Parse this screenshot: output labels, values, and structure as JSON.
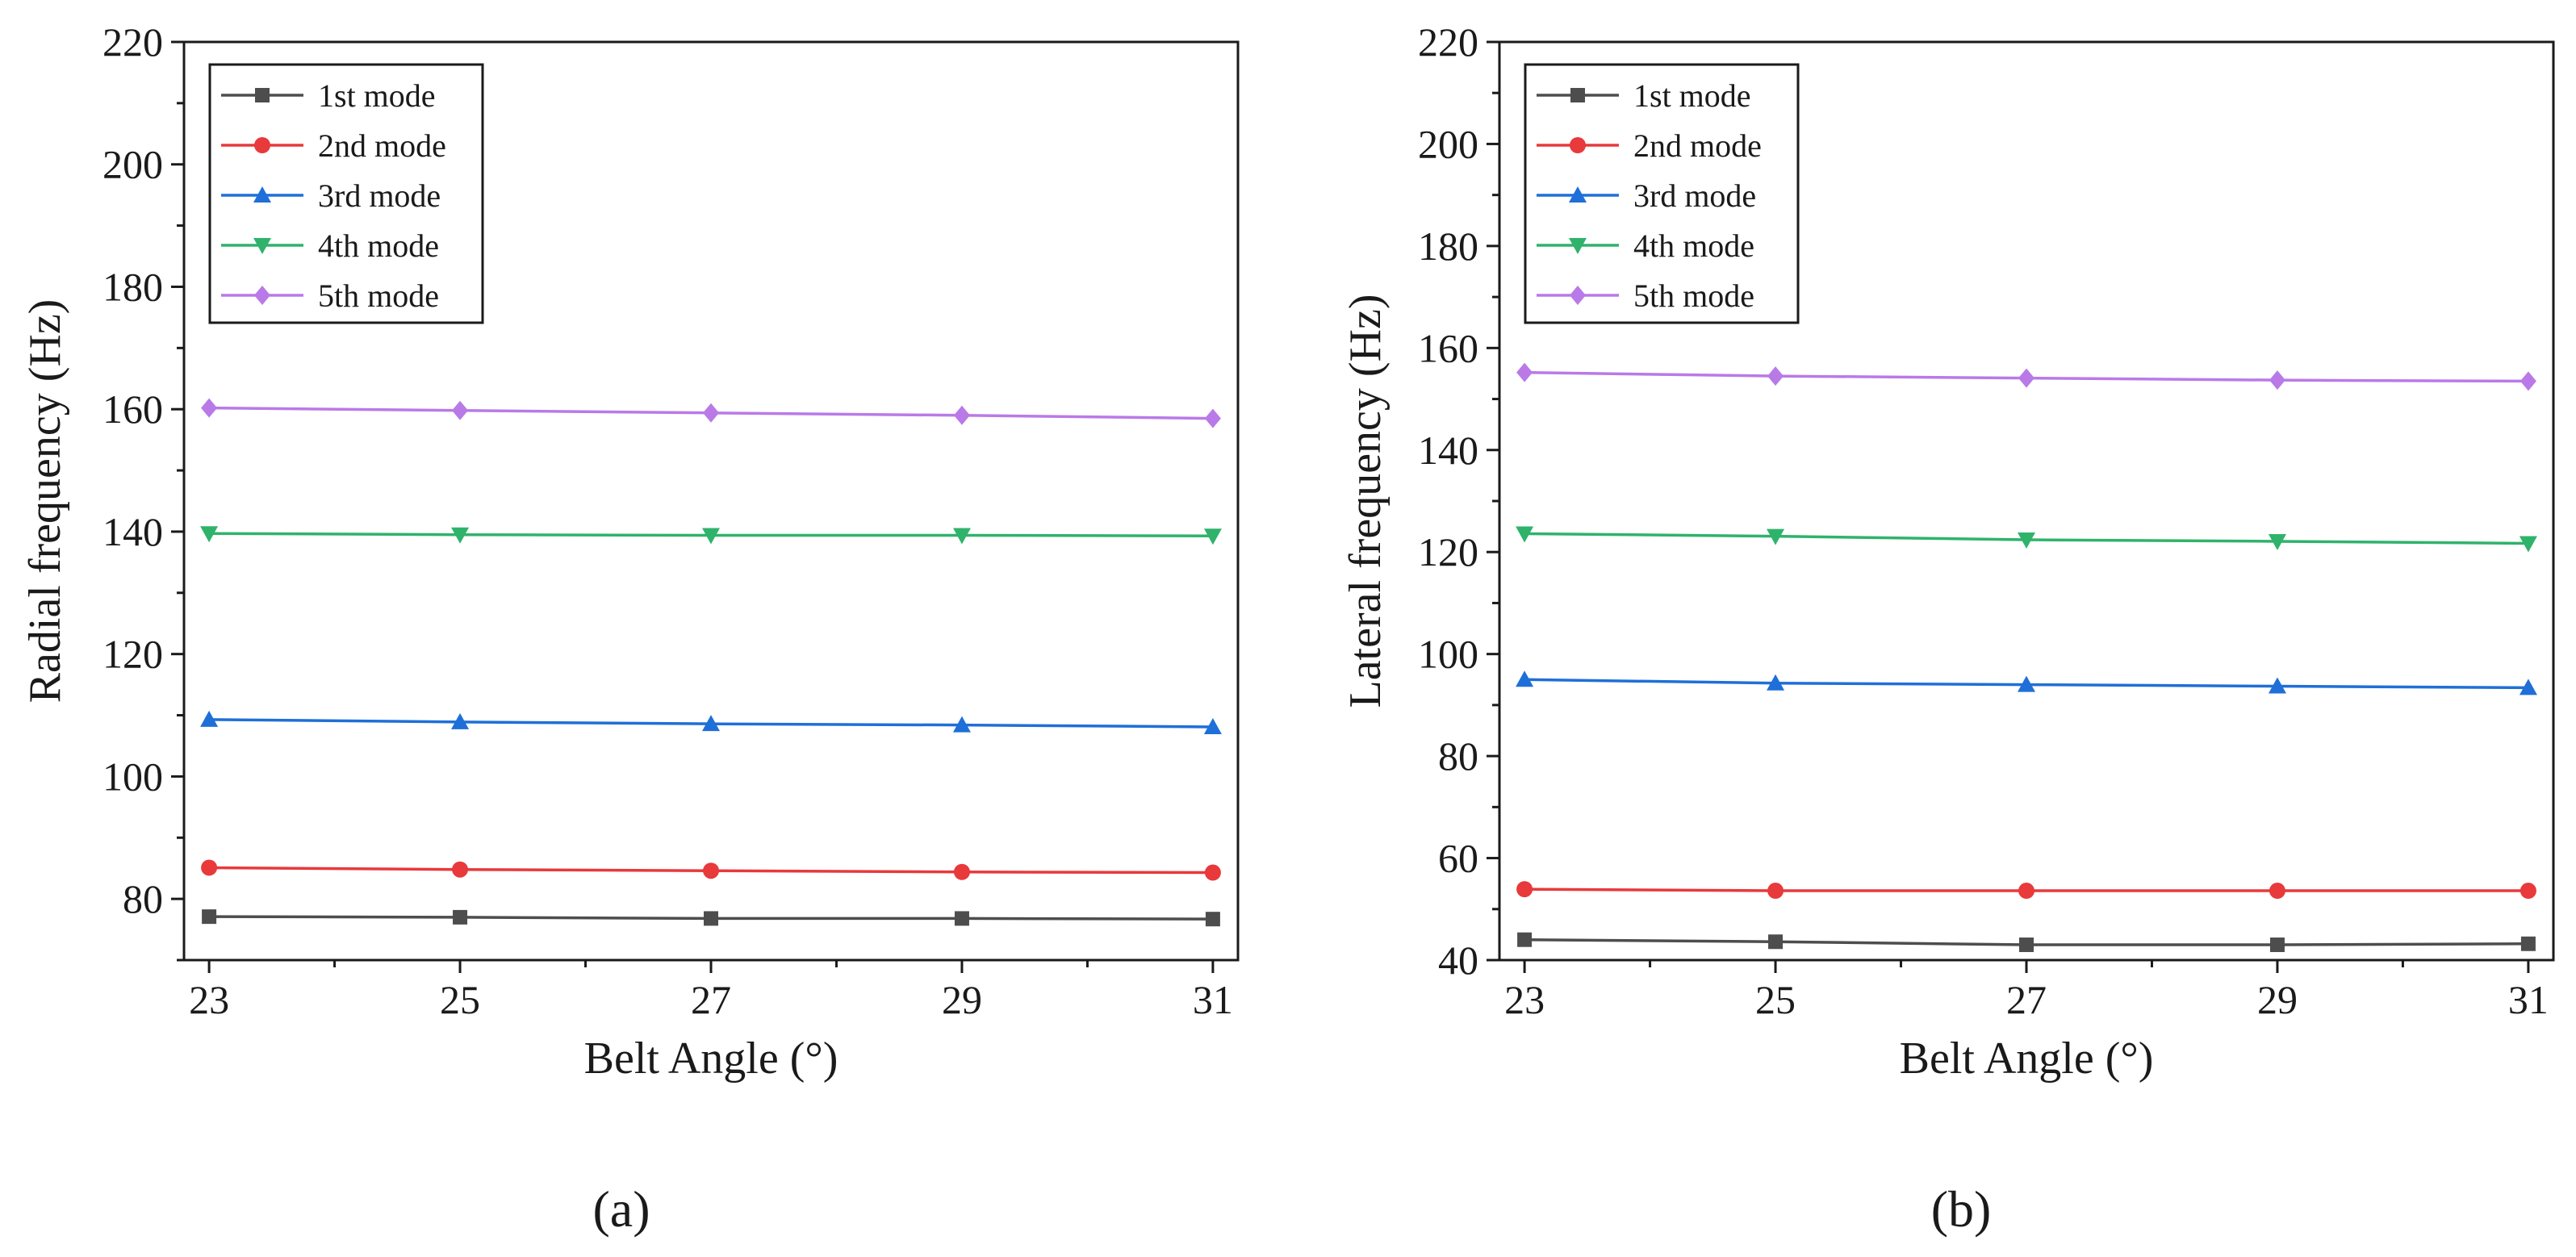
{
  "chart_data": [
    {
      "type": "line",
      "panel_label": "(a)",
      "title": "",
      "xlabel": "Belt Angle (°)",
      "ylabel": "Radial frequency (Hz)",
      "x": [
        23,
        25,
        27,
        29,
        31
      ],
      "xticks": [
        "23",
        "25",
        "27",
        "29",
        "31"
      ],
      "yticks": [
        "80",
        "100",
        "120",
        "140",
        "160",
        "180",
        "200",
        "220"
      ],
      "xlim": [
        22.8,
        31.2
      ],
      "ylim": [
        70,
        220
      ],
      "legend_position": "top-left",
      "series": [
        {
          "name": "1st mode",
          "color": "#4d4d4d",
          "marker": "square",
          "values": [
            77.1,
            77.0,
            76.8,
            76.8,
            76.7
          ]
        },
        {
          "name": "2nd mode",
          "color": "#e8393b",
          "marker": "circle",
          "values": [
            85.1,
            84.8,
            84.6,
            84.4,
            84.3
          ]
        },
        {
          "name": "3rd mode",
          "color": "#1f6fd8",
          "marker": "triangle-up",
          "values": [
            109.3,
            108.9,
            108.6,
            108.4,
            108.1
          ]
        },
        {
          "name": "4th mode",
          "color": "#2fb36b",
          "marker": "triangle-down",
          "values": [
            139.7,
            139.5,
            139.4,
            139.4,
            139.3
          ]
        },
        {
          "name": "5th mode",
          "color": "#b97ae8",
          "marker": "diamond",
          "values": [
            160.2,
            159.8,
            159.4,
            159.0,
            158.5
          ]
        }
      ]
    },
    {
      "type": "line",
      "panel_label": "(b)",
      "title": "",
      "xlabel": "Belt Angle (°)",
      "ylabel": "Lateral frequency (Hz)",
      "x": [
        23,
        25,
        27,
        29,
        31
      ],
      "xticks": [
        "23",
        "25",
        "27",
        "29",
        "31"
      ],
      "yticks": [
        "40",
        "60",
        "80",
        "100",
        "120",
        "140",
        "160",
        "180",
        "200",
        "220"
      ],
      "xlim": [
        22.8,
        31.2
      ],
      "ylim": [
        40,
        220
      ],
      "legend_position": "top-left",
      "series": [
        {
          "name": "1st mode",
          "color": "#4d4d4d",
          "marker": "square",
          "values": [
            44.0,
            43.6,
            43.0,
            43.0,
            43.2
          ]
        },
        {
          "name": "2nd mode",
          "color": "#e8393b",
          "marker": "circle",
          "values": [
            53.9,
            53.6,
            53.6,
            53.6,
            53.6
          ]
        },
        {
          "name": "3rd mode",
          "color": "#1f6fd8",
          "marker": "triangle-up",
          "values": [
            95.0,
            94.3,
            94.0,
            93.7,
            93.4
          ]
        },
        {
          "name": "4th mode",
          "color": "#2fb36b",
          "marker": "triangle-down",
          "values": [
            123.6,
            123.1,
            122.4,
            122.1,
            121.7
          ]
        },
        {
          "name": "5th mode",
          "color": "#b97ae8",
          "marker": "diamond",
          "values": [
            155.2,
            154.5,
            154.1,
            153.7,
            153.5
          ]
        }
      ]
    }
  ]
}
